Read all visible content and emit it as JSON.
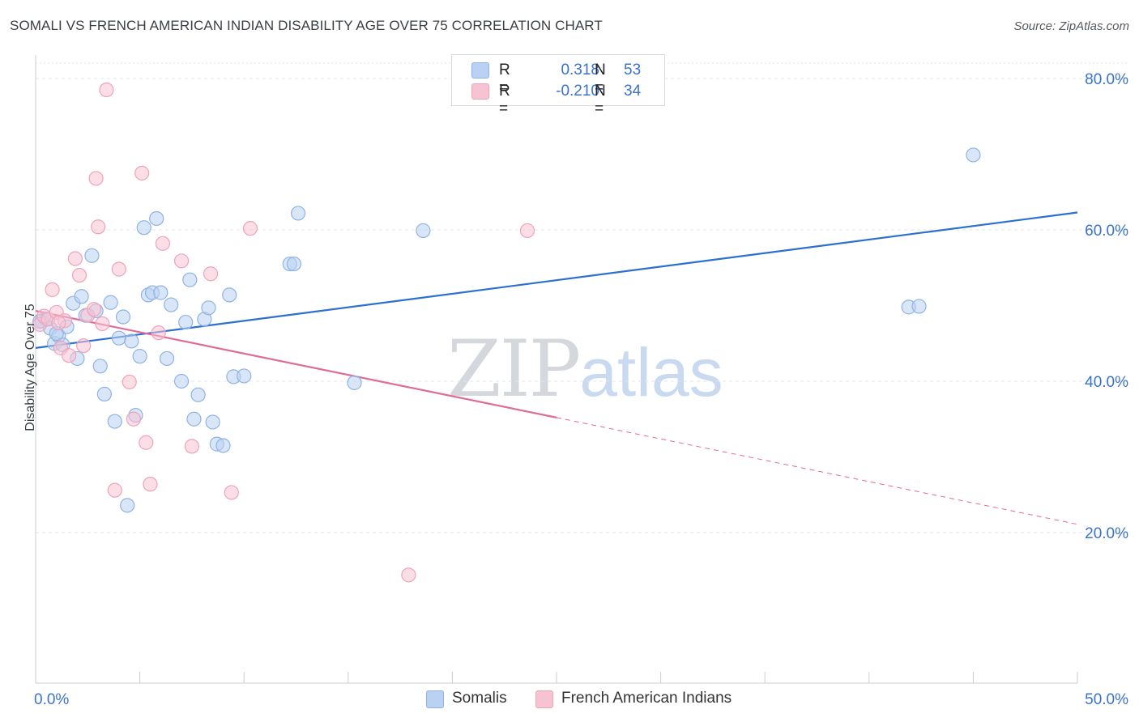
{
  "title": "SOMALI VS FRENCH AMERICAN INDIAN DISABILITY AGE OVER 75 CORRELATION CHART",
  "source": "Source: ZipAtlas.com",
  "watermark": {
    "zip": "ZIP",
    "atlas": "atlas"
  },
  "colors": {
    "blue_fill": "#b9d1f2",
    "blue_stroke": "#8fb3e4",
    "blue_line": "#2b6fd0",
    "pink_fill": "#f7c3d2",
    "pink_stroke": "#eea3bb",
    "pink_line": "#e06b95",
    "tick_text": "#3a73c9",
    "grid": "#e3e6ea"
  },
  "legend_top": {
    "rows": [
      {
        "r_label": "R =",
        "r_value": "0.318",
        "n_label": "N =",
        "n_value": "53"
      },
      {
        "r_label": "R =",
        "r_value": "-0.210",
        "n_label": "N =",
        "n_value": "34"
      }
    ]
  },
  "legend_bottom": [
    "Somalis",
    "French American Indians"
  ],
  "chart_data": {
    "type": "scatter",
    "title": "SOMALI VS FRENCH AMERICAN INDIAN DISABILITY AGE OVER 75 CORRELATION CHART",
    "xlabel": "",
    "ylabel": "Disability Age Over 75",
    "xlim": [
      0,
      50
    ],
    "ylim": [
      0,
      82
    ],
    "x_tick_labels": [
      "0.0%",
      "50.0%"
    ],
    "y_ticks": [
      20,
      40,
      60,
      80
    ],
    "y_tick_labels": [
      "20.0%",
      "40.0%",
      "60.0%",
      "80.0%"
    ],
    "grid": true,
    "legend_position": "top-center",
    "series": [
      {
        "name": "Somalis",
        "color": "#b9d1f2",
        "points": [
          [
            0.3,
            48.0
          ],
          [
            0.5,
            48.2
          ],
          [
            0.7,
            47.0
          ],
          [
            0.9,
            45.0
          ],
          [
            1.1,
            46.0
          ],
          [
            1.3,
            44.8
          ],
          [
            1.5,
            47.2
          ],
          [
            1.8,
            50.3
          ],
          [
            2.0,
            43.0
          ],
          [
            2.2,
            51.2
          ],
          [
            2.4,
            48.7
          ],
          [
            2.7,
            56.6
          ],
          [
            2.9,
            49.3
          ],
          [
            3.1,
            42.0
          ],
          [
            3.3,
            38.3
          ],
          [
            3.6,
            50.4
          ],
          [
            3.8,
            34.7
          ],
          [
            4.0,
            45.7
          ],
          [
            4.2,
            48.5
          ],
          [
            4.4,
            23.6
          ],
          [
            4.6,
            45.3
          ],
          [
            4.8,
            35.5
          ],
          [
            5.0,
            43.3
          ],
          [
            5.2,
            60.3
          ],
          [
            5.4,
            51.4
          ],
          [
            5.6,
            51.7
          ],
          [
            5.8,
            61.5
          ],
          [
            6.0,
            51.7
          ],
          [
            6.3,
            43.0
          ],
          [
            6.5,
            50.1
          ],
          [
            7.0,
            40.0
          ],
          [
            7.2,
            47.8
          ],
          [
            7.4,
            53.4
          ],
          [
            7.6,
            35.0
          ],
          [
            7.8,
            38.2
          ],
          [
            8.1,
            48.2
          ],
          [
            8.3,
            49.7
          ],
          [
            8.5,
            34.6
          ],
          [
            8.7,
            31.7
          ],
          [
            9.0,
            31.5
          ],
          [
            9.3,
            51.4
          ],
          [
            9.5,
            40.6
          ],
          [
            10.0,
            40.7
          ],
          [
            12.2,
            55.5
          ],
          [
            12.4,
            55.5
          ],
          [
            12.6,
            62.2
          ],
          [
            15.3,
            39.8
          ],
          [
            18.6,
            59.9
          ],
          [
            41.9,
            49.8
          ],
          [
            42.4,
            49.9
          ],
          [
            45.0,
            69.9
          ],
          [
            0.2,
            47.9
          ],
          [
            1.0,
            46.3
          ]
        ],
        "trend": {
          "x": [
            0,
            50
          ],
          "y": [
            44.4,
            62.3
          ]
        }
      },
      {
        "name": "French American Indians",
        "color": "#f7c3d2",
        "points": [
          [
            0.2,
            47.5
          ],
          [
            0.4,
            48.6
          ],
          [
            0.6,
            48.2
          ],
          [
            0.8,
            52.1
          ],
          [
            1.0,
            49.1
          ],
          [
            1.2,
            44.4
          ],
          [
            1.4,
            48.0
          ],
          [
            1.6,
            43.4
          ],
          [
            1.9,
            56.2
          ],
          [
            2.1,
            54.0
          ],
          [
            2.3,
            44.7
          ],
          [
            2.5,
            48.7
          ],
          [
            2.8,
            49.5
          ],
          [
            2.9,
            66.8
          ],
          [
            3.0,
            60.4
          ],
          [
            3.2,
            47.6
          ],
          [
            3.8,
            25.6
          ],
          [
            4.0,
            54.8
          ],
          [
            4.5,
            39.9
          ],
          [
            4.7,
            35.0
          ],
          [
            5.1,
            67.5
          ],
          [
            5.3,
            31.9
          ],
          [
            5.5,
            26.4
          ],
          [
            5.9,
            46.4
          ],
          [
            6.1,
            58.2
          ],
          [
            7.0,
            55.9
          ],
          [
            7.5,
            31.4
          ],
          [
            8.4,
            54.2
          ],
          [
            9.4,
            25.3
          ],
          [
            10.3,
            60.2
          ],
          [
            17.9,
            14.4
          ],
          [
            23.6,
            59.9
          ],
          [
            3.4,
            78.5
          ],
          [
            1.1,
            47.7
          ]
        ],
        "trend": {
          "x": [
            0,
            50
          ],
          "y": [
            49.3,
            21.1
          ],
          "solid_until_x": 25
        }
      }
    ]
  }
}
